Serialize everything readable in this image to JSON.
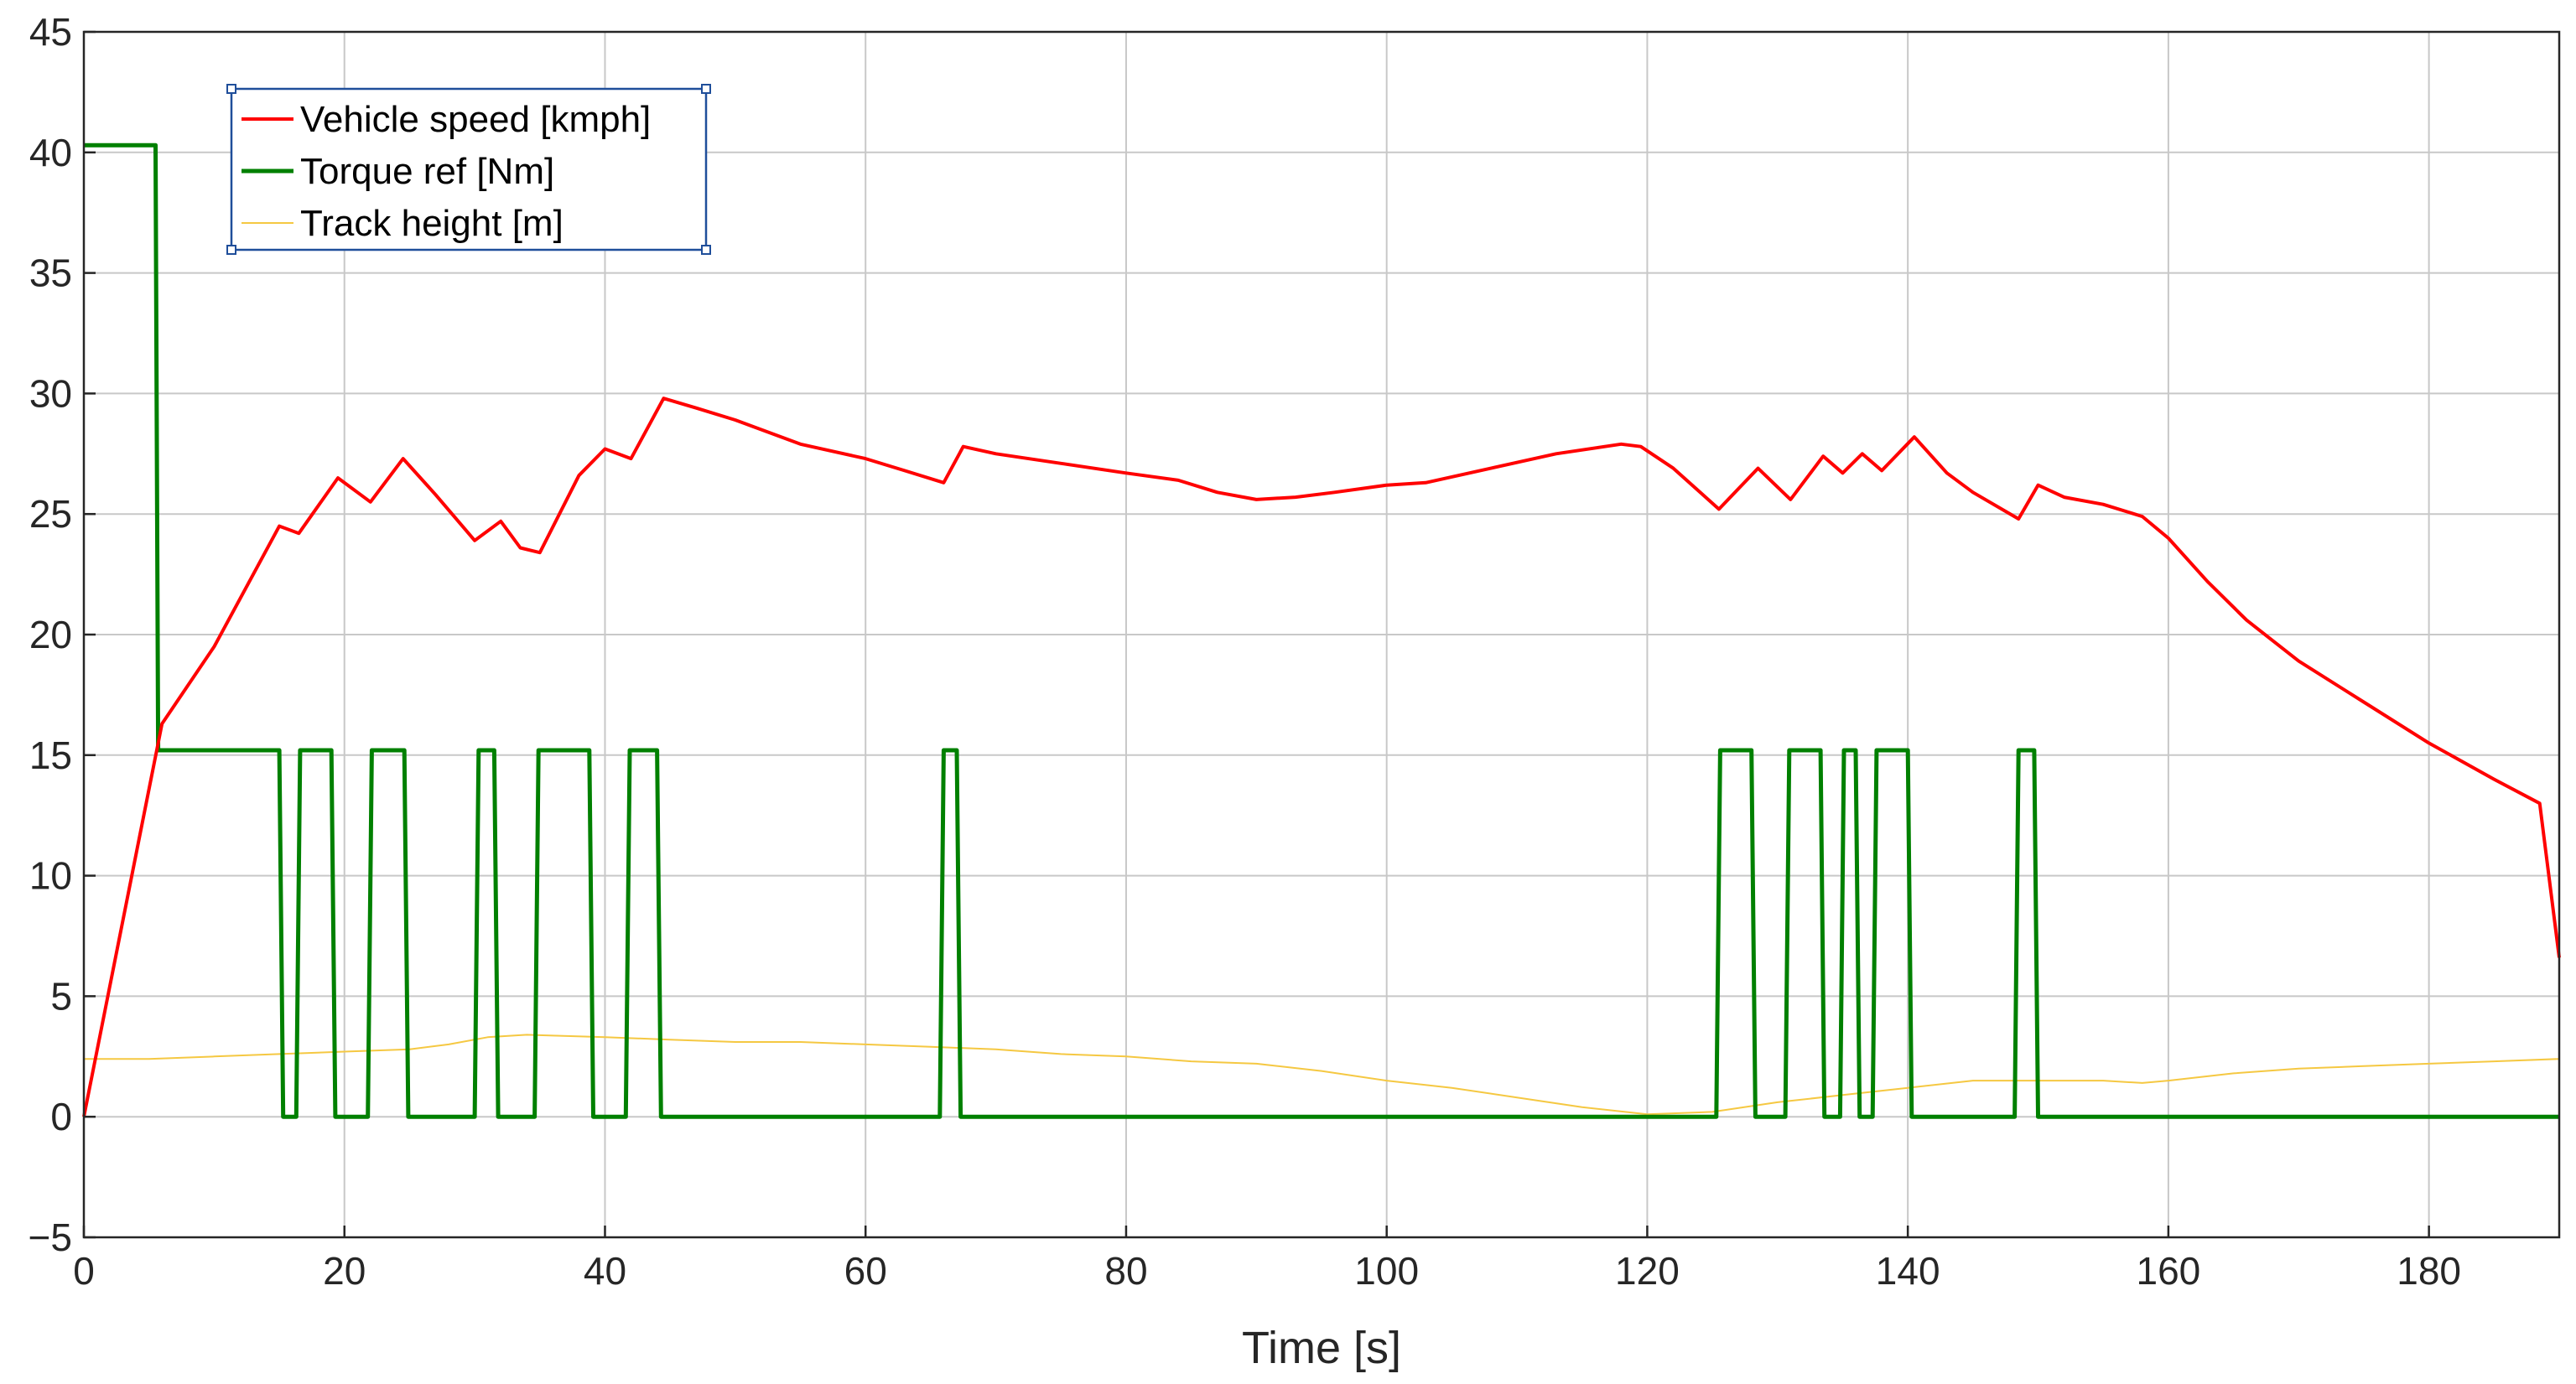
{
  "chart_data": {
    "type": "line",
    "title": "",
    "xlabel": "Time [s]",
    "ylabel": "",
    "xlim": [
      0,
      190
    ],
    "ylim": [
      -5,
      45
    ],
    "xticks": [
      0,
      20,
      40,
      60,
      80,
      100,
      120,
      140,
      160,
      180
    ],
    "yticks": [
      -5,
      0,
      5,
      10,
      15,
      20,
      25,
      30,
      35,
      40,
      45
    ],
    "grid": true,
    "legend_position": "top-left",
    "series": [
      {
        "name": "Vehicle speed [kmph]",
        "color": "#ff0000",
        "x": [
          0,
          6,
          10,
          15,
          16.5,
          19.5,
          22,
          24.5,
          27,
          30,
          32,
          33.5,
          35,
          38,
          40,
          42,
          44.5,
          47,
          50,
          55,
          60,
          63,
          66,
          67.5,
          70,
          75,
          80,
          84,
          87,
          90,
          93,
          96,
          100,
          103,
          108,
          113,
          118,
          119.5,
          122,
          125.5,
          128.5,
          131,
          133.5,
          135,
          136.5,
          138,
          140.5,
          143,
          145,
          148.5,
          150,
          152,
          155,
          158,
          160,
          163,
          166,
          170,
          175,
          180,
          185,
          188.5,
          190
        ],
        "y": [
          0,
          16.3,
          19.5,
          24.5,
          24.2,
          26.5,
          25.5,
          27.3,
          25.8,
          23.9,
          24.7,
          23.6,
          23.4,
          26.6,
          27.7,
          27.3,
          29.8,
          29.4,
          28.9,
          27.9,
          27.3,
          26.8,
          26.3,
          27.8,
          27.5,
          27.1,
          26.7,
          26.4,
          25.9,
          25.6,
          25.7,
          25.9,
          26.2,
          26.3,
          26.9,
          27.5,
          27.9,
          27.8,
          26.9,
          25.2,
          26.9,
          25.6,
          27.4,
          26.7,
          27.5,
          26.8,
          28.2,
          26.7,
          25.9,
          24.8,
          26.2,
          25.7,
          25.4,
          24.9,
          24.0,
          22.2,
          20.6,
          18.9,
          17.2,
          15.5,
          14.0,
          13.0,
          6.6
        ]
      },
      {
        "name": "Torque ref [Nm]",
        "color": "#008000",
        "x": [
          0,
          5.5,
          5.7,
          15,
          15.3,
          16.3,
          16.6,
          19,
          19.3,
          21.8,
          22.1,
          24.6,
          24.9,
          30,
          30.3,
          31.5,
          31.8,
          34.6,
          34.9,
          38.8,
          39.1,
          41.6,
          41.9,
          44,
          44.3,
          65.7,
          66,
          67,
          67.3,
          125.3,
          125.6,
          128,
          128.3,
          130.6,
          130.9,
          133.3,
          133.6,
          134.8,
          135.1,
          136,
          136.3,
          137.3,
          137.6,
          140,
          140.3,
          148.2,
          148.5,
          149.7,
          150,
          190
        ],
        "y": [
          40.3,
          40.3,
          15.2,
          15.2,
          0,
          0,
          15.2,
          15.2,
          0,
          0,
          15.2,
          15.2,
          0,
          0,
          15.2,
          15.2,
          0,
          0,
          15.2,
          15.2,
          0,
          0,
          15.2,
          15.2,
          0,
          0,
          15.2,
          15.2,
          0,
          0,
          15.2,
          15.2,
          0,
          0,
          15.2,
          15.2,
          0,
          0,
          15.2,
          15.2,
          0,
          0,
          15.2,
          15.2,
          0,
          0,
          15.2,
          15.2,
          0,
          0
        ]
      },
      {
        "name": "Track height [m]",
        "color": "#f5c842",
        "x": [
          0,
          5,
          10,
          15,
          20,
          25,
          28,
          31,
          34,
          40,
          45,
          50,
          55,
          60,
          65,
          70,
          75,
          80,
          85,
          90,
          95,
          100,
          105,
          110,
          115,
          120,
          125,
          130,
          135,
          140,
          145,
          150,
          155,
          158,
          160,
          165,
          170,
          175,
          180,
          185,
          190
        ],
        "y": [
          2.4,
          2.4,
          2.5,
          2.6,
          2.7,
          2.8,
          3.0,
          3.3,
          3.4,
          3.3,
          3.2,
          3.1,
          3.1,
          3.0,
          2.9,
          2.8,
          2.6,
          2.5,
          2.3,
          2.2,
          1.9,
          1.5,
          1.2,
          0.8,
          0.4,
          0.1,
          0.2,
          0.6,
          0.9,
          1.2,
          1.5,
          1.5,
          1.5,
          1.4,
          1.5,
          1.8,
          2.0,
          2.1,
          2.2,
          2.3,
          2.4
        ]
      }
    ]
  }
}
